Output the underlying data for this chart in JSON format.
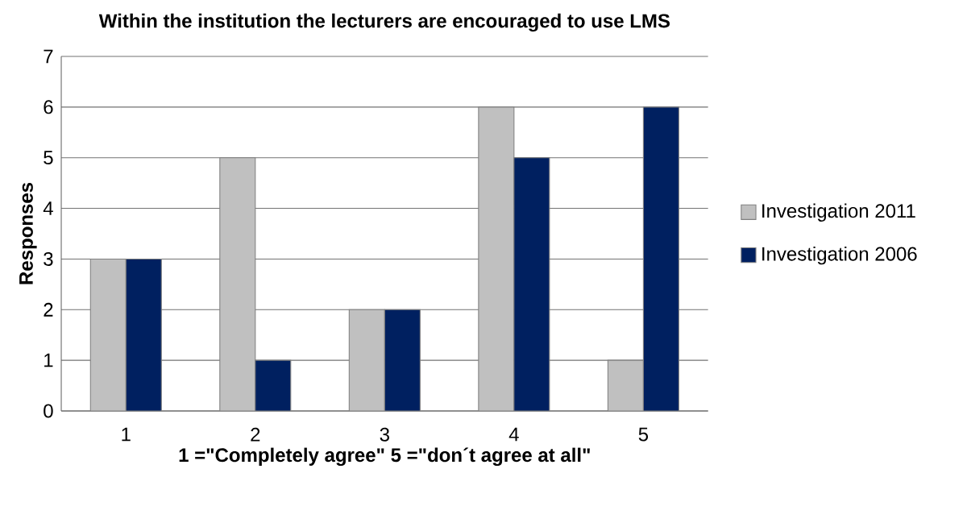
{
  "chart_data": {
    "type": "bar",
    "title": "Within the institution the lecturers are encouraged to use LMS",
    "xlabel": "1 =\"Completely agree\" 5 =\"don´t agree at all\"",
    "ylabel": "Responses",
    "categories": [
      "1",
      "2",
      "3",
      "4",
      "5"
    ],
    "series": [
      {
        "name": "Investigation 2011",
        "color": "#c0c0c0",
        "values": [
          3,
          5,
          2,
          6,
          1
        ]
      },
      {
        "name": "Investigation 2006",
        "color": "#002060",
        "values": [
          3,
          1,
          2,
          5,
          6
        ]
      }
    ],
    "ylim": [
      0,
      7
    ],
    "yticks": [
      0,
      1,
      2,
      3,
      4,
      5,
      6,
      7
    ],
    "grid": "y",
    "legend": "right"
  }
}
